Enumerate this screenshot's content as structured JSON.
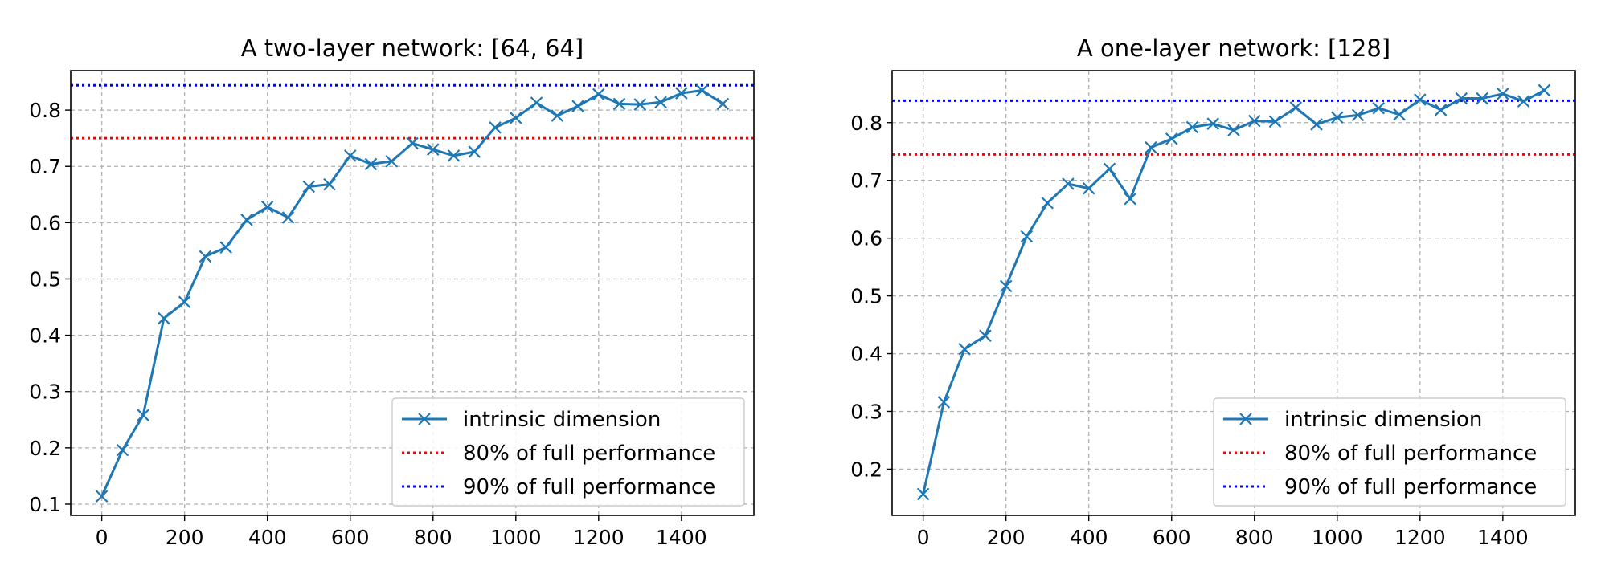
{
  "chart_data": [
    {
      "type": "line",
      "title": "A two-layer network: [64, 64]",
      "xlabel": "",
      "ylabel": "",
      "xlim": [
        -75,
        1575
      ],
      "ylim": [
        0.08,
        0.87
      ],
      "xticks": [
        0,
        200,
        400,
        600,
        800,
        1000,
        1200,
        1400
      ],
      "yticks": [
        0.1,
        0.2,
        0.3,
        0.4,
        0.5,
        0.6,
        0.7,
        0.8
      ],
      "grid": true,
      "legend_position": "lower right",
      "series": [
        {
          "name": "intrinsic dimension",
          "color": "#1f77b4",
          "marker": "x",
          "x": [
            0,
            50,
            100,
            150,
            200,
            250,
            300,
            350,
            400,
            450,
            500,
            550,
            600,
            650,
            700,
            750,
            800,
            850,
            900,
            950,
            1000,
            1050,
            1100,
            1150,
            1200,
            1250,
            1300,
            1350,
            1400,
            1450,
            1500
          ],
          "y": [
            0.114,
            0.196,
            0.258,
            0.43,
            0.459,
            0.54,
            0.556,
            0.605,
            0.628,
            0.609,
            0.664,
            0.668,
            0.719,
            0.704,
            0.709,
            0.741,
            0.73,
            0.719,
            0.726,
            0.769,
            0.786,
            0.813,
            0.79,
            0.807,
            0.828,
            0.811,
            0.81,
            0.814,
            0.83,
            0.835,
            0.811
          ]
        }
      ],
      "reference_lines": [
        {
          "name": "80% of full performance",
          "y": 0.75,
          "color": "#ff0000"
        },
        {
          "name": "90% of full performance",
          "y": 0.844,
          "color": "#0000ff"
        }
      ]
    },
    {
      "type": "line",
      "title": "A one-layer network: [128]",
      "xlabel": "",
      "ylabel": "",
      "xlim": [
        -75,
        1575
      ],
      "ylim": [
        0.12,
        0.89
      ],
      "xticks": [
        0,
        200,
        400,
        600,
        800,
        1000,
        1200,
        1400
      ],
      "yticks": [
        0.2,
        0.3,
        0.4,
        0.5,
        0.6,
        0.7,
        0.8
      ],
      "grid": true,
      "legend_position": "lower right",
      "series": [
        {
          "name": "intrinsic dimension",
          "color": "#1f77b4",
          "marker": "x",
          "x": [
            0,
            50,
            100,
            150,
            200,
            250,
            300,
            350,
            400,
            450,
            500,
            550,
            600,
            650,
            700,
            750,
            800,
            850,
            900,
            950,
            1000,
            1050,
            1100,
            1150,
            1200,
            1250,
            1300,
            1350,
            1400,
            1450,
            1500
          ],
          "y": [
            0.157,
            0.316,
            0.408,
            0.431,
            0.517,
            0.603,
            0.661,
            0.694,
            0.686,
            0.72,
            0.668,
            0.757,
            0.772,
            0.792,
            0.798,
            0.787,
            0.803,
            0.802,
            0.826,
            0.797,
            0.809,
            0.813,
            0.825,
            0.814,
            0.84,
            0.822,
            0.842,
            0.842,
            0.85,
            0.837,
            0.856
          ]
        }
      ],
      "reference_lines": [
        {
          "name": "80% of full performance",
          "y": 0.745,
          "color": "#ff0000"
        },
        {
          "name": "90% of full performance",
          "y": 0.838,
          "color": "#0000ff"
        }
      ]
    }
  ]
}
